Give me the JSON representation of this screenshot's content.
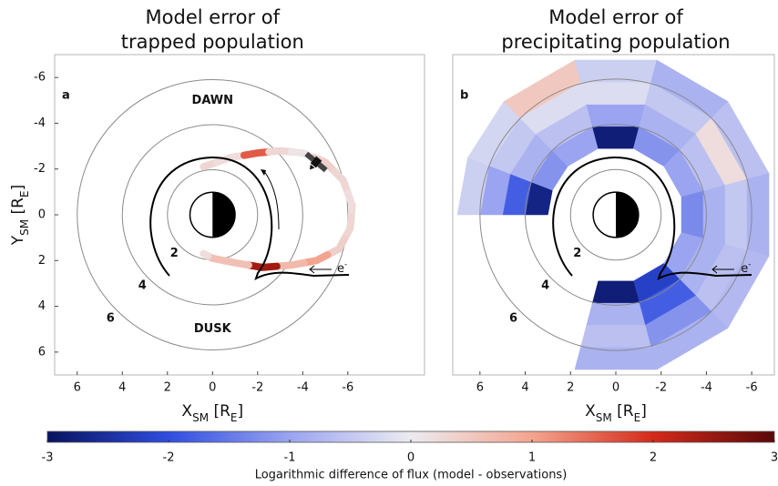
{
  "chart_data": [
    {
      "type": "orbit",
      "label": "a",
      "title": [
        "Model error of",
        "trapped population"
      ],
      "xlabel": [
        "X",
        "SM",
        " [R",
        "E",
        "]"
      ],
      "ylabel": [
        "Y",
        "SM",
        " [R",
        "E",
        "]"
      ],
      "xlim": [
        7,
        -9.4
      ],
      "ylim": [
        -7,
        7
      ],
      "xticks": [
        6,
        4,
        2,
        0,
        -2,
        -4,
        -6
      ],
      "yticks": [
        -6,
        -4,
        -2,
        0,
        2,
        4,
        6
      ],
      "rings": [
        2,
        4,
        6
      ],
      "annotations": [
        "DAWN",
        "DUSK"
      ],
      "particle": [
        "e",
        "-"
      ],
      "orbit": {
        "x": [
          0.4,
          -0.8,
          -2,
          -3,
          -4,
          -5,
          -5.8,
          -6.2,
          -6.1,
          -5.6,
          -4.6,
          -3.5,
          -2.2,
          -1,
          0,
          0.4
        ],
        "y": [
          -2.1,
          -2.5,
          -2.7,
          -2.8,
          -2.7,
          -2.3,
          -1.5,
          -0.4,
          0.6,
          1.5,
          2.0,
          2.2,
          2.3,
          2.1,
          1.9,
          1.7
        ],
        "values": [
          0.3,
          0.2,
          1.6,
          0.3,
          0.1,
          0.4,
          0.3,
          0.2,
          0.3,
          0.4,
          1.0,
          0.7,
          2.4,
          0.6,
          0.6,
          0.2
        ]
      }
    },
    {
      "type": "sector-map",
      "label": "b",
      "title": [
        "Model error of",
        "precipitating population"
      ],
      "xlabel": [
        "X",
        "SM",
        " [R",
        "E",
        "]"
      ],
      "xlim": [
        7.2,
        -7
      ],
      "ylim": [
        -7,
        7
      ],
      "xticks": [
        6,
        4,
        2,
        0,
        -2,
        -4,
        -6
      ],
      "rings": [
        2,
        4,
        6
      ],
      "particle": [
        "e",
        "-"
      ],
      "rbins": [
        3,
        4,
        5,
        6,
        7
      ],
      "sectors": [
        {
          "mlt": [
            10.6,
            12
          ],
          "values": [
            -2.7,
            -1.8,
            -1.0,
            -0.4
          ]
        },
        {
          "mlt": [
            9,
            10.6
          ],
          "values": [
            -1.2,
            -0.8,
            -0.5,
            -0.3
          ]
        },
        {
          "mlt": [
            7,
            9
          ],
          "values": [
            -1.0,
            -0.6,
            -0.2,
            0.5
          ]
        },
        {
          "mlt": [
            5,
            7
          ],
          "values": [
            -2.8,
            -1.0,
            -0.2,
            -0.4
          ]
        },
        {
          "mlt": [
            3,
            5
          ],
          "values": [
            -1.2,
            -0.8,
            -0.5,
            -0.8
          ]
        },
        {
          "mlt": [
            1,
            3
          ],
          "values": [
            -1.0,
            -0.6,
            0.2,
            -0.6
          ]
        },
        {
          "mlt": [
            -1,
            1
          ],
          "values": [
            -1.3,
            -0.8,
            -0.5,
            -0.8
          ]
        },
        {
          "mlt": [
            21,
            23
          ],
          "values": [
            -1.0,
            -0.8,
            -0.6,
            -0.7
          ]
        },
        {
          "mlt": [
            19,
            21
          ],
          "values": [
            -2.2,
            -1.8,
            -1.2,
            -0.8
          ]
        },
        {
          "mlt": [
            17,
            19
          ],
          "values": [
            -2.8,
            -0.8,
            -0.6,
            -0.8
          ]
        }
      ]
    },
    {
      "type": "colorbar",
      "label": "Logarithmic difference of flux (model - observations)",
      "clim": [
        -3,
        3
      ],
      "cticks": [
        -3,
        -2,
        -1,
        0,
        1,
        2,
        3
      ],
      "colormap": [
        "#08125e",
        "#2f4de0",
        "#9aa4f0",
        "#ecebf0",
        "#f4a48e",
        "#d42a1a",
        "#5a0808"
      ]
    }
  ]
}
